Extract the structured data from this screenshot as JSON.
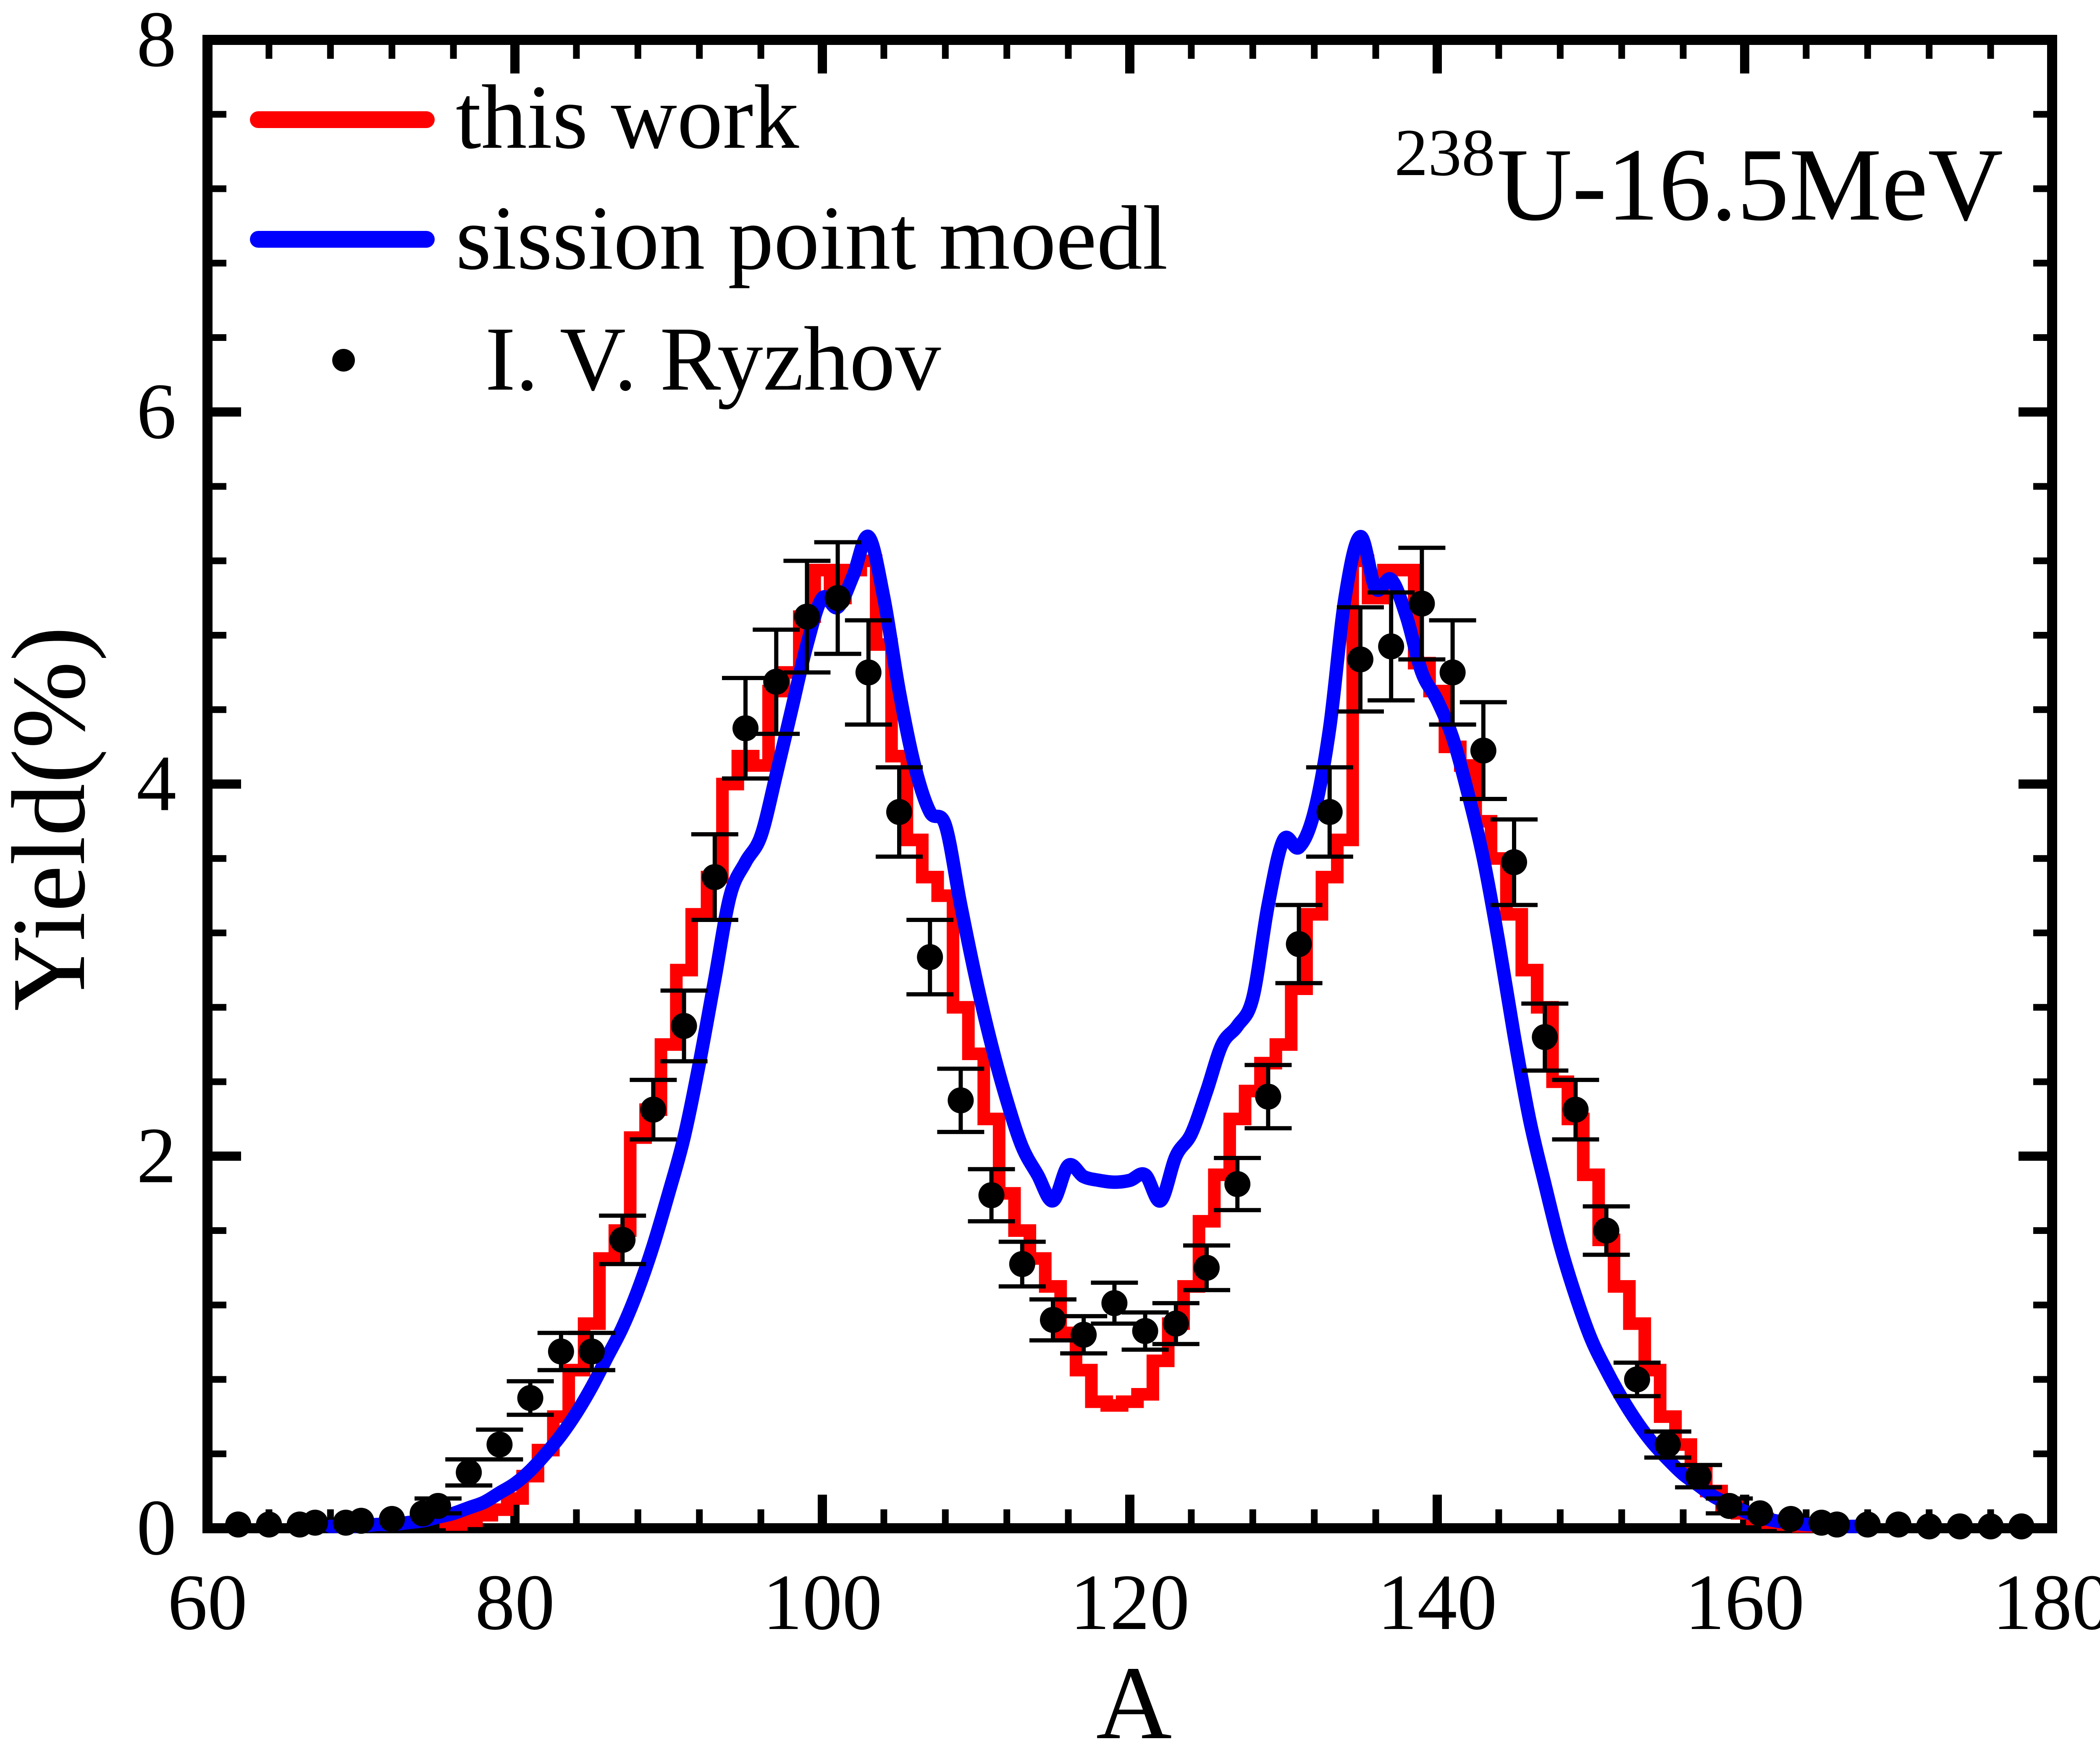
{
  "chart_data": {
    "type": "line",
    "title": "",
    "xlabel": "A",
    "ylabel": "Yield(%)",
    "xlim": [
      60,
      180
    ],
    "ylim": [
      0,
      8
    ],
    "grid": false,
    "x_major_ticks": [
      60,
      80,
      100,
      120,
      140,
      160,
      180
    ],
    "x_tick_labels": [
      "60",
      "80",
      "100",
      "120",
      "140",
      "160",
      "180"
    ],
    "x_minor_step": 4,
    "y_major_ticks": [
      0,
      2,
      4,
      6,
      8
    ],
    "y_tick_labels": [
      "0",
      "2",
      "4",
      "6",
      "8"
    ],
    "y_minor_step": 0.4,
    "annotation": {
      "superscript": "238",
      "main": "U-16.5MeV"
    },
    "legend": {
      "position": "top-left",
      "entries": [
        {
          "label": "this work",
          "type": "line",
          "color": "#ff0000"
        },
        {
          "label": "sission point moedl",
          "type": "line",
          "color": "#0000ff"
        },
        {
          "label": "I. V. Ryzhov",
          "type": "scatter",
          "color": "#000000"
        }
      ]
    },
    "series": [
      {
        "name": "this work",
        "style": "step-histogram",
        "color": "#ff0000",
        "a_start": 76,
        "a_step": 1,
        "values": [
          0.02,
          0.04,
          0.07,
          0.1,
          0.16,
          0.28,
          0.42,
          0.6,
          0.85,
          1.1,
          1.45,
          1.6,
          2.1,
          2.25,
          2.6,
          3.0,
          3.3,
          3.5,
          4.0,
          4.15,
          4.1,
          4.5,
          4.6,
          4.9,
          5.15,
          5.0,
          5.15,
          5.2,
          4.75,
          4.15,
          3.7,
          3.5,
          3.4,
          2.8,
          2.55,
          2.2,
          1.8,
          1.6,
          1.45,
          1.3,
          1.05,
          0.85,
          0.68,
          0.66,
          0.68,
          0.72,
          0.9,
          1.1,
          1.3,
          1.65,
          1.9,
          2.2,
          2.35,
          2.5,
          2.6,
          2.9,
          3.3,
          3.5,
          3.7,
          5.2,
          5.0,
          5.15,
          5.15,
          4.65,
          4.5,
          4.2,
          4.1,
          3.8,
          3.6,
          3.3,
          3.0,
          2.8,
          2.4,
          2.2,
          1.9,
          1.55,
          1.3,
          1.1,
          0.85,
          0.6,
          0.45,
          0.3,
          0.2,
          0.12,
          0.08,
          0.05,
          0.03,
          0.02,
          0.01
        ]
      },
      {
        "name": "sission point moedl",
        "style": "smooth",
        "color": "#0000ff",
        "a_start": 68,
        "a_step": 1,
        "values": [
          0.01,
          0.01,
          0.01,
          0.02,
          0.02,
          0.03,
          0.04,
          0.06,
          0.08,
          0.11,
          0.14,
          0.19,
          0.24,
          0.31,
          0.4,
          0.5,
          0.62,
          0.76,
          0.92,
          1.08,
          1.28,
          1.52,
          1.8,
          2.1,
          2.5,
          2.95,
          3.4,
          3.58,
          3.72,
          4.05,
          4.4,
          4.75,
          5.0,
          4.95,
          5.12,
          5.33,
          5.0,
          4.5,
          4.1,
          3.85,
          3.78,
          3.35,
          2.95,
          2.6,
          2.3,
          2.05,
          1.9,
          1.76,
          1.95,
          1.89,
          1.87,
          1.86,
          1.87,
          1.9,
          1.76,
          2.0,
          2.12,
          2.35,
          2.6,
          2.7,
          2.85,
          3.35,
          3.7,
          3.66,
          3.85,
          4.3,
          5.0,
          5.33,
          5.05,
          5.1,
          4.9,
          4.6,
          4.45,
          4.25,
          3.95,
          3.6,
          3.15,
          2.65,
          2.2,
          1.85,
          1.52,
          1.25,
          1.02,
          0.85,
          0.7,
          0.57,
          0.46,
          0.37,
          0.29,
          0.23,
          0.17,
          0.13,
          0.09,
          0.06,
          0.04,
          0.03,
          0.02,
          0.02,
          0.01,
          0.01,
          0.01
        ]
      },
      {
        "name": "I. V. Ryzhov",
        "style": "scatter-errorbar",
        "color": "#000000",
        "points": [
          [
            62,
            0.02,
            0.02
          ],
          [
            64,
            0.02,
            0.02
          ],
          [
            66,
            0.02,
            0.02
          ],
          [
            67,
            0.03,
            0.02
          ],
          [
            69,
            0.03,
            0.02
          ],
          [
            70,
            0.04,
            0.02
          ],
          [
            72,
            0.05,
            0.02
          ],
          [
            74,
            0.08,
            0.03
          ],
          [
            75,
            0.12,
            0.04
          ],
          [
            77,
            0.3,
            0.07
          ],
          [
            79,
            0.45,
            0.08
          ],
          [
            81,
            0.7,
            0.09
          ],
          [
            83,
            0.95,
            0.1
          ],
          [
            85,
            0.95,
            0.1
          ],
          [
            87,
            1.55,
            0.13
          ],
          [
            89,
            2.25,
            0.16
          ],
          [
            91,
            2.7,
            0.19
          ],
          [
            93,
            3.5,
            0.23
          ],
          [
            95,
            4.3,
            0.27
          ],
          [
            97,
            4.55,
            0.28
          ],
          [
            99,
            4.9,
            0.3
          ],
          [
            101,
            5.0,
            0.3
          ],
          [
            103,
            4.6,
            0.28
          ],
          [
            105,
            3.85,
            0.24
          ],
          [
            107,
            3.07,
            0.2
          ],
          [
            109,
            2.3,
            0.17
          ],
          [
            111,
            1.79,
            0.14
          ],
          [
            113,
            1.42,
            0.12
          ],
          [
            115,
            1.12,
            0.11
          ],
          [
            117,
            1.04,
            0.1
          ],
          [
            119,
            1.21,
            0.11
          ],
          [
            121,
            1.06,
            0.1
          ],
          [
            123,
            1.1,
            0.11
          ],
          [
            125,
            1.4,
            0.12
          ],
          [
            127,
            1.85,
            0.14
          ],
          [
            129,
            2.32,
            0.17
          ],
          [
            131,
            3.14,
            0.21
          ],
          [
            133,
            3.85,
            0.24
          ],
          [
            135,
            4.67,
            0.28
          ],
          [
            137,
            4.74,
            0.29
          ],
          [
            139,
            4.97,
            0.3
          ],
          [
            141,
            4.6,
            0.28
          ],
          [
            143,
            4.18,
            0.26
          ],
          [
            145,
            3.58,
            0.23
          ],
          [
            147,
            2.64,
            0.18
          ],
          [
            149,
            2.25,
            0.16
          ],
          [
            151,
            1.6,
            0.13
          ],
          [
            153,
            0.8,
            0.09
          ],
          [
            155,
            0.45,
            0.07
          ],
          [
            157,
            0.28,
            0.06
          ],
          [
            159,
            0.12,
            0.04
          ],
          [
            161,
            0.08,
            0.03
          ],
          [
            163,
            0.05,
            0.02
          ],
          [
            165,
            0.03,
            0.02
          ],
          [
            166,
            0.02,
            0.02
          ],
          [
            168,
            0.02,
            0.02
          ],
          [
            170,
            0.02,
            0.02
          ],
          [
            172,
            0.01,
            0.01
          ],
          [
            174,
            0.01,
            0.01
          ],
          [
            176,
            0.01,
            0.01
          ],
          [
            178,
            0.01,
            0.01
          ]
        ]
      }
    ],
    "colors": {
      "this_work": "#ff0000",
      "model": "#0000ff",
      "data_points": "#000000",
      "frame": "#000000",
      "background": "#ffffff"
    }
  }
}
